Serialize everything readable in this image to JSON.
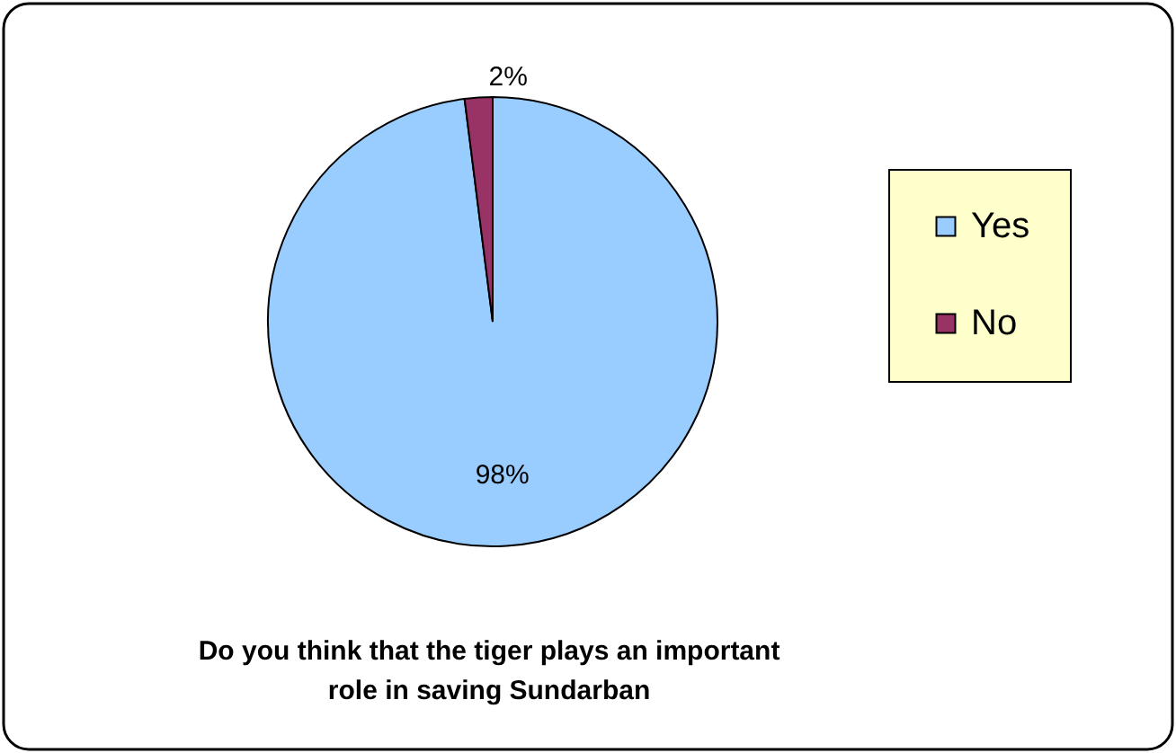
{
  "chart_data": {
    "type": "pie",
    "title": "Do you think that the tiger plays an important role in saving Sundarban",
    "categories": [
      "Yes",
      "No"
    ],
    "values": [
      98,
      2
    ],
    "colors": [
      "#99ccff",
      "#993366"
    ],
    "value_labels": [
      "98%",
      "2%"
    ],
    "legend": "right"
  }
}
